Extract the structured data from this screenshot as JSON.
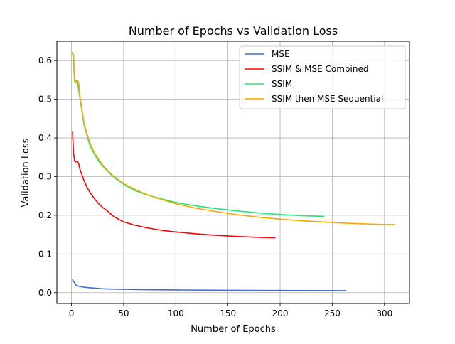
{
  "chart_data": {
    "type": "line",
    "title": "Number of Epochs vs Validation Loss",
    "xlabel": "Number of Epochs",
    "ylabel": "Validation Loss",
    "xlim": [
      -14,
      324
    ],
    "ylim": [
      -0.028,
      0.65
    ],
    "xticks": [
      0,
      50,
      100,
      150,
      200,
      250,
      300
    ],
    "yticks": [
      0.0,
      0.1,
      0.2,
      0.3,
      0.4,
      0.5,
      0.6
    ],
    "grid": true,
    "legend_position": "top-right",
    "series": [
      {
        "name": "MSE",
        "color": "#4169e1",
        "points": [
          [
            1,
            0.033
          ],
          [
            3,
            0.025
          ],
          [
            5,
            0.018
          ],
          [
            8,
            0.016
          ],
          [
            12,
            0.014
          ],
          [
            20,
            0.012
          ],
          [
            30,
            0.01
          ],
          [
            40,
            0.009
          ],
          [
            50,
            0.0085
          ],
          [
            70,
            0.0078
          ],
          [
            100,
            0.007
          ],
          [
            150,
            0.0062
          ],
          [
            200,
            0.0056
          ],
          [
            230,
            0.0054
          ],
          [
            263,
            0.0052
          ]
        ]
      },
      {
        "name": "SSIM & MSE Combined",
        "color": "#ff0000",
        "points": [
          [
            1,
            0.415
          ],
          [
            2,
            0.36
          ],
          [
            3,
            0.34
          ],
          [
            4,
            0.338
          ],
          [
            5,
            0.34
          ],
          [
            6,
            0.338
          ],
          [
            7,
            0.333
          ],
          [
            8,
            0.32
          ],
          [
            10,
            0.305
          ],
          [
            12,
            0.29
          ],
          [
            15,
            0.272
          ],
          [
            18,
            0.258
          ],
          [
            22,
            0.243
          ],
          [
            26,
            0.23
          ],
          [
            30,
            0.22
          ],
          [
            35,
            0.21
          ],
          [
            40,
            0.198
          ],
          [
            45,
            0.19
          ],
          [
            50,
            0.183
          ],
          [
            60,
            0.175
          ],
          [
            70,
            0.169
          ],
          [
            80,
            0.164
          ],
          [
            90,
            0.16
          ],
          [
            100,
            0.157
          ],
          [
            120,
            0.152
          ],
          [
            140,
            0.148
          ],
          [
            160,
            0.145
          ],
          [
            180,
            0.143
          ],
          [
            195,
            0.142
          ]
        ]
      },
      {
        "name": "SSIM",
        "color": "#1aeb7f",
        "points": [
          [
            1,
            0.62
          ],
          [
            2,
            0.6
          ],
          [
            3,
            0.545
          ],
          [
            4,
            0.545
          ],
          [
            5,
            0.548
          ],
          [
            6,
            0.54
          ],
          [
            8,
            0.505
          ],
          [
            10,
            0.47
          ],
          [
            12,
            0.435
          ],
          [
            15,
            0.405
          ],
          [
            18,
            0.378
          ],
          [
            22,
            0.358
          ],
          [
            26,
            0.34
          ],
          [
            30,
            0.327
          ],
          [
            35,
            0.313
          ],
          [
            40,
            0.3
          ],
          [
            45,
            0.29
          ],
          [
            50,
            0.28
          ],
          [
            60,
            0.265
          ],
          [
            70,
            0.255
          ],
          [
            80,
            0.247
          ],
          [
            90,
            0.24
          ],
          [
            100,
            0.233
          ],
          [
            120,
            0.224
          ],
          [
            140,
            0.217
          ],
          [
            160,
            0.211
          ],
          [
            180,
            0.206
          ],
          [
            200,
            0.202
          ],
          [
            220,
            0.199
          ],
          [
            242,
            0.197
          ]
        ]
      },
      {
        "name": "SSIM then MSE Sequential",
        "color": "#ffa500",
        "points": [
          [
            1,
            0.622
          ],
          [
            2,
            0.615
          ],
          [
            3,
            0.555
          ],
          [
            4,
            0.542
          ],
          [
            5,
            0.545
          ],
          [
            6,
            0.548
          ],
          [
            7,
            0.54
          ],
          [
            8,
            0.51
          ],
          [
            10,
            0.475
          ],
          [
            12,
            0.44
          ],
          [
            15,
            0.41
          ],
          [
            18,
            0.385
          ],
          [
            22,
            0.362
          ],
          [
            26,
            0.345
          ],
          [
            30,
            0.33
          ],
          [
            35,
            0.315
          ],
          [
            40,
            0.302
          ],
          [
            45,
            0.292
          ],
          [
            50,
            0.282
          ],
          [
            60,
            0.268
          ],
          [
            70,
            0.256
          ],
          [
            80,
            0.246
          ],
          [
            90,
            0.238
          ],
          [
            100,
            0.23
          ],
          [
            120,
            0.218
          ],
          [
            140,
            0.209
          ],
          [
            160,
            0.201
          ],
          [
            180,
            0.195
          ],
          [
            200,
            0.19
          ],
          [
            220,
            0.186
          ],
          [
            240,
            0.183
          ],
          [
            260,
            0.18
          ],
          [
            280,
            0.178
          ],
          [
            300,
            0.176
          ],
          [
            310,
            0.176
          ]
        ]
      }
    ]
  }
}
